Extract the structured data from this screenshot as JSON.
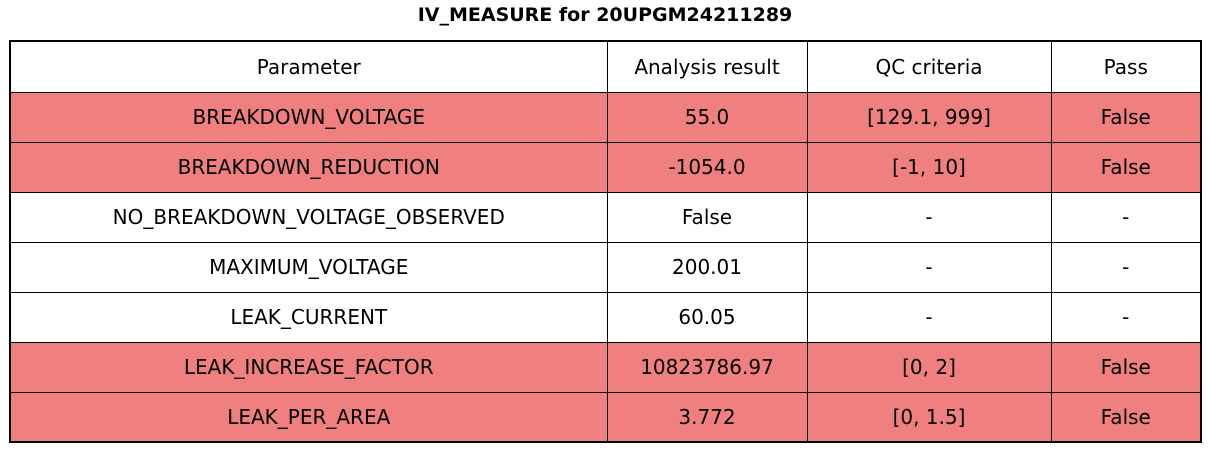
{
  "chart_data": {
    "type": "table",
    "title": "IV_MEASURE for 20UPGM24211289",
    "columns": [
      "Parameter",
      "Analysis result",
      "QC criteria",
      "Pass"
    ],
    "row_fields": [
      "parameter",
      "analysis_result",
      "qc_criteria",
      "pass"
    ],
    "rows": [
      {
        "parameter": "BREAKDOWN_VOLTAGE",
        "analysis_result": "55.0",
        "qc_criteria": "[129.1, 999]",
        "pass": "False",
        "failed": true
      },
      {
        "parameter": "BREAKDOWN_REDUCTION",
        "analysis_result": "-1054.0",
        "qc_criteria": "[-1, 10]",
        "pass": "False",
        "failed": true
      },
      {
        "parameter": "NO_BREAKDOWN_VOLTAGE_OBSERVED",
        "analysis_result": "False",
        "qc_criteria": "-",
        "pass": "-",
        "failed": false
      },
      {
        "parameter": "MAXIMUM_VOLTAGE",
        "analysis_result": "200.01",
        "qc_criteria": "-",
        "pass": "-",
        "failed": false
      },
      {
        "parameter": "LEAK_CURRENT",
        "analysis_result": "60.05",
        "qc_criteria": "-",
        "pass": "-",
        "failed": false
      },
      {
        "parameter": "LEAK_INCREASE_FACTOR",
        "analysis_result": "10823786.97",
        "qc_criteria": "[0, 2]",
        "pass": "False",
        "failed": true
      },
      {
        "parameter": "LEAK_PER_AREA",
        "analysis_result": "3.772",
        "qc_criteria": "[0, 1.5]",
        "pass": "False",
        "failed": true
      }
    ]
  },
  "colors": {
    "fail_row_background": "#f08080",
    "normal_row_background": "#ffffff",
    "border": "#000000",
    "text": "#000000"
  }
}
